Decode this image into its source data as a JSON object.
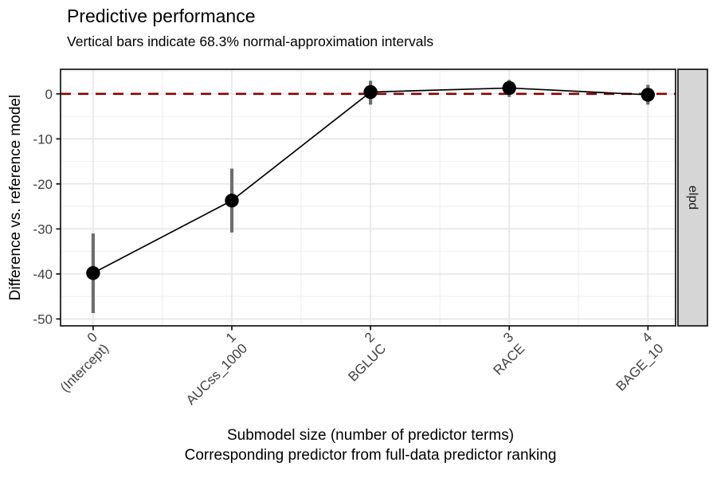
{
  "chart_data": {
    "type": "line",
    "title": "Predictive performance",
    "subtitle": "Vertical bars indicate 68.3% normal-approximation intervals",
    "ylabel": "Difference vs. reference model",
    "xlabel_line1": "Submodel size (number of predictor terms)",
    "xlabel_line2": "Corresponding predictor from full-data predictor ranking",
    "facet_label": "elpd",
    "interval_level": "68.3%",
    "x": [
      0,
      1,
      2,
      3,
      4
    ],
    "x_tick_labels_top": [
      "0",
      "1",
      "2",
      "3",
      "4"
    ],
    "x_tick_labels_bottom": [
      "(Intercept)",
      "AUCss_1000",
      "BGLUC",
      "RACE",
      "BAGE_10"
    ],
    "y_ticks": [
      0,
      -10,
      -20,
      -30,
      -40,
      -50
    ],
    "ylim": [
      -51.5,
      5.4
    ],
    "series": [
      {
        "name": "elpd difference vs. reference model",
        "values": [
          -39.8,
          -23.7,
          0.4,
          1.3,
          -0.2
        ],
        "interval_lower": [
          -48.7,
          -30.8,
          -2.4,
          -0.7,
          -2.4
        ],
        "interval_upper": [
          -31.0,
          -16.6,
          2.9,
          3.1,
          2.0
        ]
      }
    ],
    "reference_line": {
      "y": 0,
      "style": "dashed",
      "color": "#8B0000"
    },
    "grid": "on",
    "legend_position": "none",
    "colors": {
      "point": "#000000",
      "line": "#000000",
      "error_bar": "#6e6e6e",
      "reference": "#8B0000",
      "grid_major": "#e6e6e6",
      "grid_minor": "#f2f2f2",
      "panel_border": "#1f1f1f",
      "strip_fill": "#d6d6d6",
      "axis_text": "#404040",
      "text": "#000000"
    }
  }
}
